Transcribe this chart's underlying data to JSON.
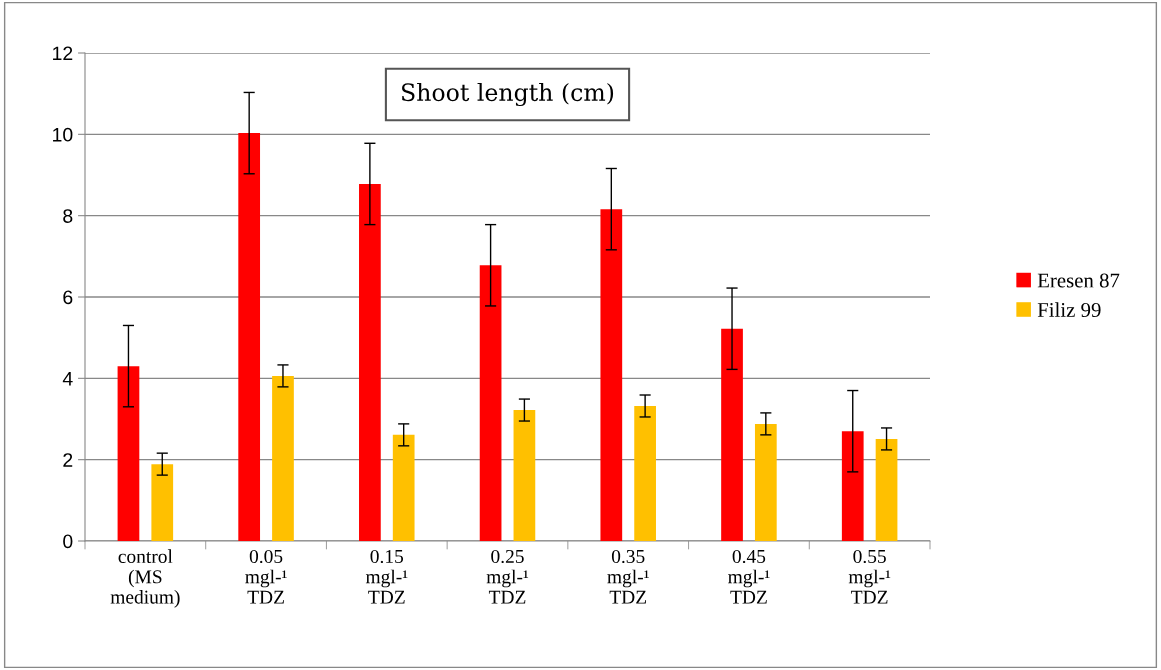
{
  "chart_data": {
    "type": "bar",
    "title": "Shoot length (cm)",
    "categories": [
      "control\n(MS\nmedium)",
      "0.05\nmgl-¹\nTDZ",
      "0.15\nmgl-¹\nTDZ",
      "0.25\nmgl-¹\nTDZ",
      "0.35\nmgl-¹\nTDZ",
      "0.45\nmgl-¹\nTDZ",
      "0.55\nmgl-¹\nTDZ"
    ],
    "series": [
      {
        "name": "Eresen 87",
        "color": "#ff0000",
        "values": [
          4.3,
          10.03,
          8.78,
          6.78,
          8.16,
          5.22,
          2.7
        ],
        "errors": [
          1,
          1,
          1,
          1,
          1,
          1,
          1
        ]
      },
      {
        "name": "Filiz 99",
        "color": "#ffc000",
        "values": [
          1.89,
          4.06,
          2.61,
          3.22,
          3.32,
          2.88,
          2.51
        ],
        "errors": [
          0.27,
          0.27,
          0.27,
          0.27,
          0.27,
          0.27,
          0.27
        ]
      }
    ],
    "ylim": [
      0,
      12
    ],
    "yticks": [
      0,
      2,
      4,
      6,
      8,
      10,
      12
    ],
    "grid": "y",
    "legend": "right"
  }
}
